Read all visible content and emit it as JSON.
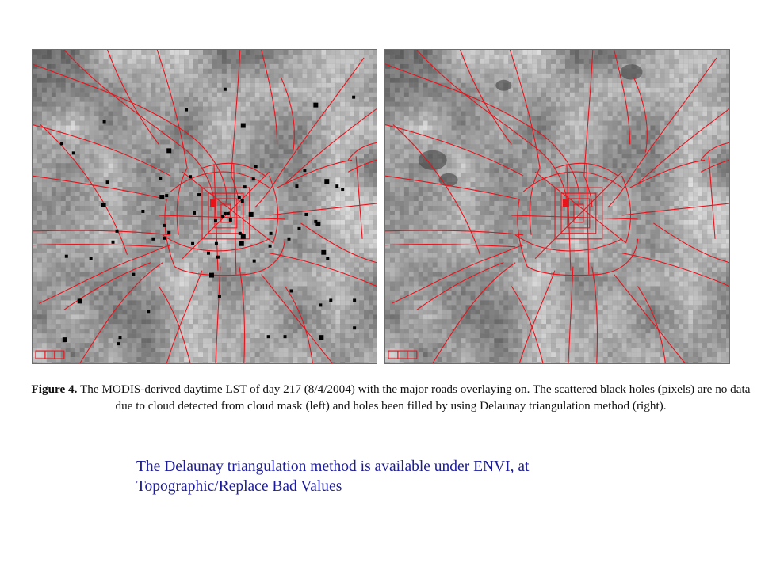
{
  "figure": {
    "label": "Figure 4.",
    "caption": "The MODIS-derived daytime LST of day 217 (8/4/2004) with the major roads overlaying on. The scattered black holes (pixels) are no data due to cloud detected from cloud mask (left) and holes been filled by using Delaunay triangulation method (right).",
    "panels": [
      {
        "id": "left",
        "shows_no_data_holes": true
      },
      {
        "id": "right",
        "shows_no_data_holes": false
      }
    ],
    "colors": {
      "roads": "#e8141c",
      "no_data": "#000000",
      "note_text": "#1c1c99"
    }
  },
  "note": {
    "line1": "The Delaunay triangulation method is available under ENVI, at",
    "line2": "Topographic/Replace Bad Values"
  }
}
